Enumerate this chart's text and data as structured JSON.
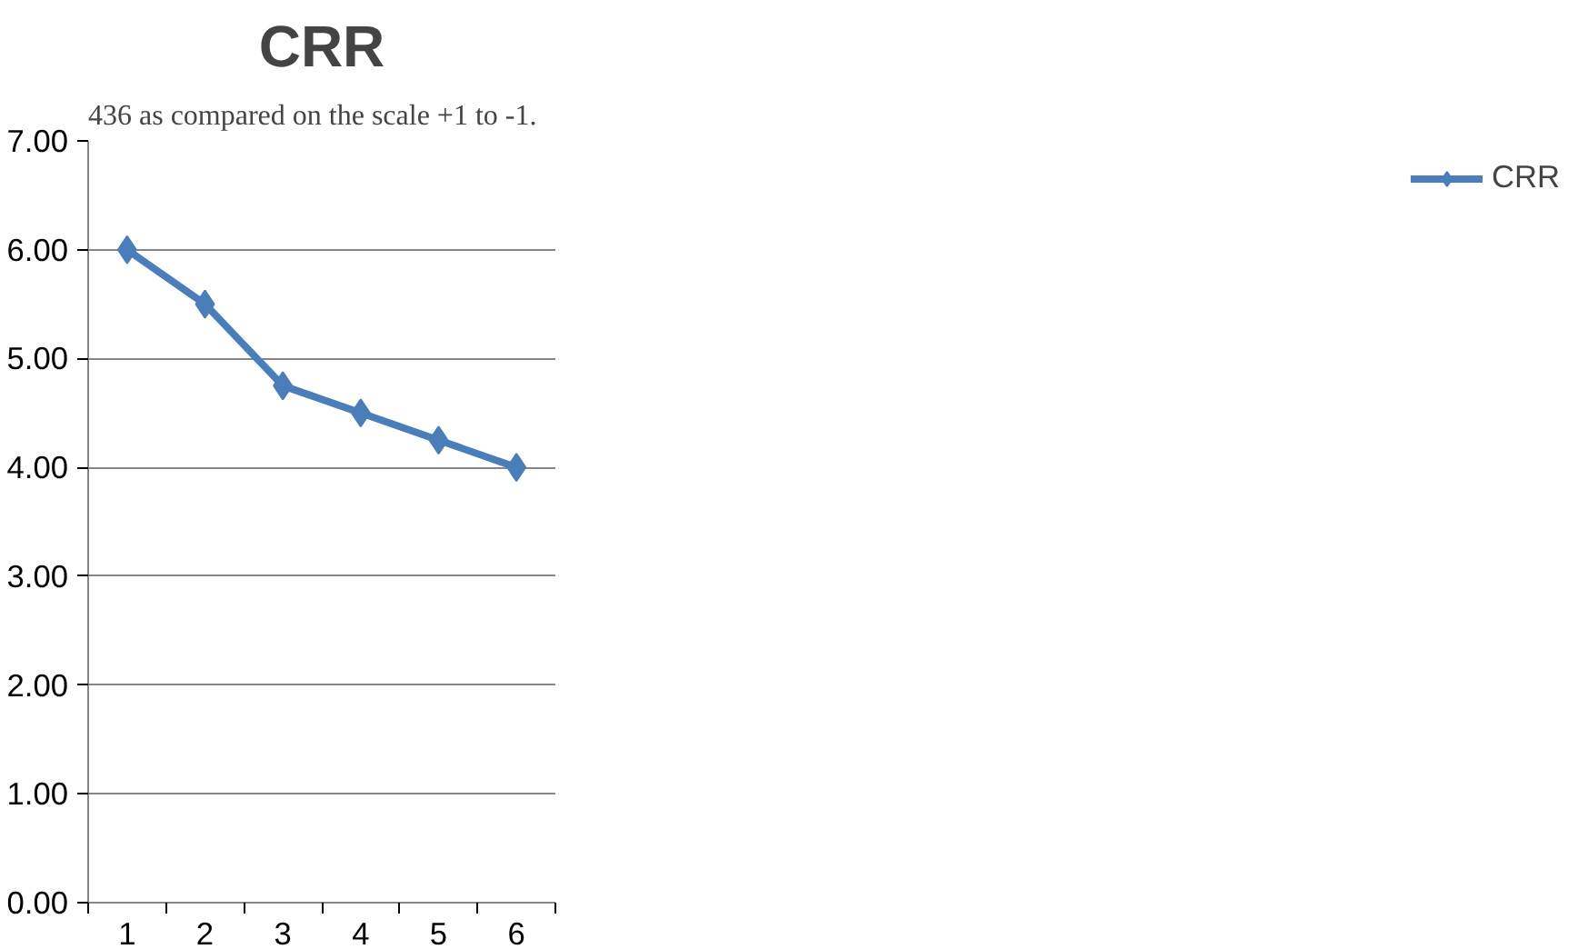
{
  "chart_data": {
    "type": "line",
    "title": "CRR",
    "annotations": [
      "436 as compared on the scale +1 to -1."
    ],
    "categories": [
      "1",
      "2",
      "3",
      "4",
      "5",
      "6"
    ],
    "series": [
      {
        "name": "CRR",
        "color": "#4a7ebb",
        "values": [
          6.0,
          5.5,
          4.75,
          4.5,
          4.25,
          4.0
        ]
      }
    ],
    "ylim": [
      0,
      7
    ],
    "yticks": [
      {
        "value": 0,
        "label": "0.00"
      },
      {
        "value": 1,
        "label": "1.00"
      },
      {
        "value": 2,
        "label": "2.00"
      },
      {
        "value": 3,
        "label": "3.00"
      },
      {
        "value": 4,
        "label": "4.00"
      },
      {
        "value": 5,
        "label": "5.00"
      },
      {
        "value": 6,
        "label": "6.00"
      },
      {
        "value": 7,
        "label": "7.00"
      }
    ],
    "grid": "y",
    "legend": "right",
    "marker": "diamond",
    "line_style": "solid"
  }
}
